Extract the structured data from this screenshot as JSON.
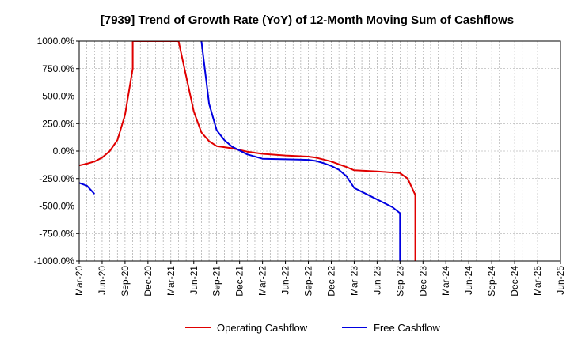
{
  "chart_data": {
    "type": "line",
    "title": "[7939]  Trend of Growth Rate (YoY) of 12-Month Moving Sum of Cashflows",
    "xlabel": "",
    "ylabel": "",
    "ylim": [
      -1000,
      1000
    ],
    "y_ticks": [
      "1000.0%",
      "750.0%",
      "500.0%",
      "250.0%",
      "0.0%",
      "-250.0%",
      "-500.0%",
      "-750.0%",
      "-1000.0%"
    ],
    "y_tick_values": [
      1000,
      750,
      500,
      250,
      0,
      -250,
      -500,
      -750,
      -1000
    ],
    "x_ticks": [
      "Mar-20",
      "Jun-20",
      "Sep-20",
      "Dec-20",
      "Mar-21",
      "Jun-21",
      "Sep-21",
      "Dec-21",
      "Mar-22",
      "Jun-22",
      "Sep-22",
      "Dec-22",
      "Mar-23",
      "Jun-23",
      "Sep-23",
      "Dec-23",
      "Mar-24",
      "Jun-24",
      "Sep-24",
      "Dec-24",
      "Mar-25",
      "Jun-25"
    ],
    "grid": true,
    "legend_position": "bottom-center",
    "series": [
      {
        "name": "Operating Cashflow",
        "color": "#e00000",
        "points": [
          [
            "Mar-20",
            -130
          ],
          [
            "Apr-20",
            -115
          ],
          [
            "May-20",
            -95
          ],
          [
            "Jun-20",
            -60
          ],
          [
            "Jul-20",
            0
          ],
          [
            "Aug-20",
            100
          ],
          [
            "Sep-20",
            330
          ],
          [
            "Oct-20",
            750
          ],
          [
            "Oct-20",
            1000
          ],
          [
            "Apr-21",
            1000
          ],
          [
            "Jun-21",
            360
          ],
          [
            "Jul-21",
            170
          ],
          [
            "Aug-21",
            90
          ],
          [
            "Sep-21",
            45
          ],
          [
            "Oct-21",
            35
          ],
          [
            "Nov-21",
            25
          ],
          [
            "Dec-21",
            10
          ],
          [
            "Jan-22",
            -5
          ],
          [
            "Mar-22",
            -25
          ],
          [
            "Jun-22",
            -40
          ],
          [
            "Sep-22",
            -50
          ],
          [
            "Oct-22",
            -60
          ],
          [
            "Dec-22",
            -95
          ],
          [
            "Jan-23",
            -120
          ],
          [
            "Feb-23",
            -145
          ],
          [
            "Mar-23",
            -175
          ],
          [
            "Jun-23",
            -185
          ],
          [
            "Sep-23",
            -200
          ],
          [
            "Oct-23",
            -250
          ],
          [
            "Nov-23",
            -400
          ],
          [
            "Nov-23",
            -1000
          ]
        ]
      },
      {
        "name": "Free Cashflow",
        "color": "#0000e0",
        "points": [
          [
            "Mar-20",
            -290
          ],
          [
            "Apr-20",
            -315
          ],
          [
            "May-20",
            -390
          ],
          null,
          [
            "Jul-21",
            1000
          ],
          [
            "Aug-21",
            430
          ],
          [
            "Sep-21",
            190
          ],
          [
            "Oct-21",
            100
          ],
          [
            "Nov-21",
            40
          ],
          [
            "Dec-21",
            5
          ],
          [
            "Jan-22",
            -30
          ],
          [
            "Mar-22",
            -70
          ],
          [
            "Jun-22",
            -75
          ],
          [
            "Sep-22",
            -80
          ],
          [
            "Oct-22",
            -90
          ],
          [
            "Nov-22",
            -110
          ],
          [
            "Dec-22",
            -135
          ],
          [
            "Jan-23",
            -170
          ],
          [
            "Feb-23",
            -230
          ],
          [
            "Mar-23",
            -335
          ],
          [
            "Jun-23",
            -440
          ],
          [
            "Aug-23",
            -510
          ],
          [
            "Sep-23",
            -565
          ],
          [
            "Sep-23",
            -1000
          ]
        ]
      }
    ]
  }
}
